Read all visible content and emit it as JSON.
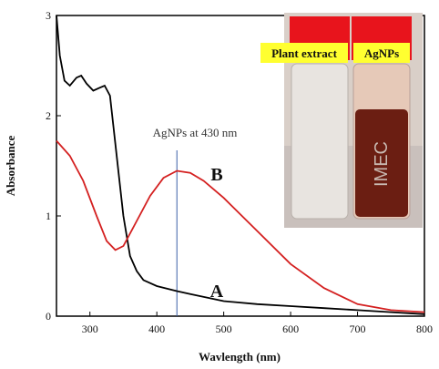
{
  "chart_data": {
    "type": "line",
    "xlabel": "Wavlength (nm)",
    "ylabel": "Absorbance",
    "xlim": [
      250,
      800
    ],
    "xticks": [
      300,
      400,
      500,
      600,
      700,
      800
    ],
    "ylim": [
      0,
      3
    ],
    "yticks": [
      0,
      1,
      2,
      3
    ],
    "series": [
      {
        "name": "A",
        "color": "#000000",
        "x": [
          250,
          255,
          262,
          270,
          280,
          287,
          295,
          305,
          315,
          322,
          330,
          340,
          350,
          360,
          370,
          380,
          400,
          430,
          450,
          500,
          550,
          600,
          650,
          700,
          750,
          800
        ],
        "values": [
          3.0,
          2.6,
          2.35,
          2.3,
          2.38,
          2.4,
          2.32,
          2.25,
          2.28,
          2.3,
          2.2,
          1.6,
          1.0,
          0.6,
          0.45,
          0.36,
          0.3,
          0.25,
          0.22,
          0.15,
          0.12,
          0.1,
          0.08,
          0.06,
          0.04,
          0.02
        ]
      },
      {
        "name": "B",
        "color": "#d42020",
        "x": [
          250,
          270,
          290,
          310,
          325,
          338,
          350,
          370,
          390,
          410,
          430,
          450,
          470,
          500,
          550,
          600,
          650,
          700,
          750,
          800
        ],
        "values": [
          1.75,
          1.6,
          1.35,
          1.0,
          0.75,
          0.66,
          0.7,
          0.95,
          1.2,
          1.38,
          1.45,
          1.43,
          1.35,
          1.18,
          0.85,
          0.52,
          0.28,
          0.12,
          0.06,
          0.04
        ]
      }
    ],
    "annotation": {
      "text": "AgNPs at 430 nm",
      "x": 430
    },
    "inset": {
      "labels": [
        "Plant extract",
        "AgNPs"
      ],
      "vial_text": "IMEC"
    }
  }
}
